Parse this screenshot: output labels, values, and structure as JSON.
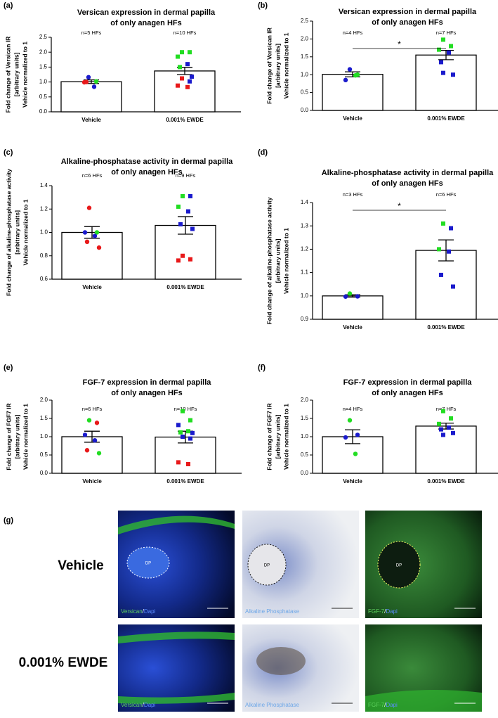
{
  "chart_data": [
    {
      "type": "bar",
      "letter": "(a)",
      "title": [
        "Versican expression in dermal papilla",
        "of only anagen HFs"
      ],
      "ylabel": [
        "Fold change of Versican IR",
        "[arbitrary units]",
        "Vehicle normalized to 1"
      ],
      "categories": [
        "Vehicle",
        "0.001% EWDE"
      ],
      "n_labels": [
        "n=5 HFs",
        "n=10 HFs"
      ],
      "values": [
        1.01,
        1.37
      ],
      "errors": [
        0.06,
        0.12
      ],
      "markers": [
        "circle",
        "square"
      ],
      "points": [
        [
          {
            "y": 1.16,
            "color": "#1a1acc"
          },
          {
            "y": 1.02,
            "color": "#22dd22"
          },
          {
            "y": 0.99,
            "color": "#e8191a"
          },
          {
            "y": 0.84,
            "color": "#1a1acc"
          },
          {
            "y": 1.0,
            "color": "#e8191a"
          }
        ],
        [
          {
            "y": 2.0,
            "color": "#22dd22"
          },
          {
            "y": 2.0,
            "color": "#22dd22"
          },
          {
            "y": 1.85,
            "color": "#22dd22"
          },
          {
            "y": 1.6,
            "color": "#1a1acc"
          },
          {
            "y": 1.5,
            "color": "#22dd22"
          },
          {
            "y": 1.18,
            "color": "#1a1acc"
          },
          {
            "y": 1.12,
            "color": "#e8191a"
          },
          {
            "y": 1.02,
            "color": "#1a1acc"
          },
          {
            "y": 0.88,
            "color": "#e8191a"
          },
          {
            "y": 0.83,
            "color": "#e8191a"
          }
        ]
      ],
      "ylim": [
        0,
        2.5
      ],
      "yticks": [
        {
          "value": 0,
          "label": "0.0"
        },
        0.5,
        {
          "value": 1,
          "label": "1.0"
        },
        1.5,
        {
          "value": 2,
          "label": "2.0"
        },
        2.5
      ]
    },
    {
      "type": "bar",
      "letter": "(b)",
      "title": [
        "Versican expression in dermal papilla",
        "of only anagen HFs"
      ],
      "ylabel": [
        "Fold change of Versican IR",
        "[arbitrary units]",
        "Vehicle normalized to 1"
      ],
      "categories": [
        "Vehicle",
        "0.001% EWDE"
      ],
      "n_labels": [
        "n=4 HFs",
        "n=7 HFs"
      ],
      "values": [
        1.01,
        1.55
      ],
      "errors": [
        0.07,
        0.13
      ],
      "markers": [
        "circle",
        "square"
      ],
      "points": [
        [
          {
            "y": 1.15,
            "color": "#1a1acc"
          },
          {
            "y": 1.0,
            "color": "#22dd22"
          },
          {
            "y": 0.85,
            "color": "#1a1acc"
          },
          {
            "y": 0.98,
            "color": "#22dd22"
          }
        ],
        [
          {
            "y": 1.98,
            "color": "#22dd22"
          },
          {
            "y": 1.8,
            "color": "#22dd22"
          },
          {
            "y": 1.7,
            "color": "#22dd22"
          },
          {
            "y": 1.62,
            "color": "#1a1acc"
          },
          {
            "y": 1.35,
            "color": "#1a1acc"
          },
          {
            "y": 1.0,
            "color": "#1a1acc"
          },
          {
            "y": 1.05,
            "color": "#1a1acc"
          }
        ]
      ],
      "ylim": [
        0,
        2.5
      ],
      "yticks": [
        {
          "value": 0,
          "label": "0.0"
        },
        0.5,
        {
          "value": 1,
          "label": "1.0"
        },
        1.5,
        {
          "value": 2,
          "label": "2.0"
        },
        2.5
      ],
      "significance": "*"
    },
    {
      "type": "bar",
      "letter": "(c)",
      "title": [
        "Alkaline-phosphatase activity in dermal papilla",
        "of only anagen HFs"
      ],
      "ylabel": [
        "Fold change of alkaline-phosphatase activity",
        "[arbitrary units]",
        "Vehicle normalized to 1"
      ],
      "categories": [
        "Vehicle",
        "0.001% EWDE"
      ],
      "n_labels": [
        "n=6 HFs",
        "n=9 HFs"
      ],
      "values": [
        1.0,
        1.06
      ],
      "errors": [
        0.05,
        0.075
      ],
      "markers": [
        "circle",
        "square"
      ],
      "points": [
        [
          {
            "y": 1.21,
            "color": "#e8191a"
          },
          {
            "y": 1.0,
            "color": "#22dd22"
          },
          {
            "y": 1.0,
            "color": "#1a1acc"
          },
          {
            "y": 0.97,
            "color": "#1a1acc"
          },
          {
            "y": 0.92,
            "color": "#e8191a"
          },
          {
            "y": 0.87,
            "color": "#e8191a"
          }
        ],
        [
          {
            "y": 1.31,
            "color": "#22dd22"
          },
          {
            "y": 1.31,
            "color": "#1a1acc"
          },
          {
            "y": 1.22,
            "color": "#22dd22"
          },
          {
            "y": 1.18,
            "color": "#1a1acc"
          },
          {
            "y": 1.07,
            "color": "#1a1acc"
          },
          {
            "y": 1.03,
            "color": "#1a1acc"
          },
          {
            "y": 0.8,
            "color": "#e8191a"
          },
          {
            "y": 0.77,
            "color": "#e8191a"
          },
          {
            "y": 0.76,
            "color": "#e8191a"
          }
        ]
      ],
      "ylim": [
        0.6,
        1.4
      ],
      "yticks": [
        0.6,
        0.8,
        {
          "value": 1,
          "label": "1.0"
        },
        1.2,
        1.4
      ]
    },
    {
      "type": "bar",
      "letter": "(d)",
      "title": [
        "Alkaline-phosphatase activity in dermal papilla",
        "of only anagen HFs"
      ],
      "ylabel": [
        "Fold change of alkaline-phosphatase activity",
        "[arbitrary units]",
        "Vehicle normalized to 1"
      ],
      "categories": [
        "Vehicle",
        "0.001% EWDE"
      ],
      "n_labels": [
        "n=3 HFs",
        "n=6 HFs"
      ],
      "values": [
        1.0,
        1.195
      ],
      "errors": [
        0.005,
        0.045
      ],
      "markers": [
        "circle",
        "square"
      ],
      "points": [
        [
          {
            "y": 1.01,
            "color": "#22dd22"
          },
          {
            "y": 0.998,
            "color": "#1a1acc"
          },
          {
            "y": 0.997,
            "color": "#1a1acc"
          }
        ],
        [
          {
            "y": 1.31,
            "color": "#22dd22"
          },
          {
            "y": 1.29,
            "color": "#1a1acc"
          },
          {
            "y": 1.2,
            "color": "#22dd22"
          },
          {
            "y": 1.19,
            "color": "#1a1acc"
          },
          {
            "y": 1.09,
            "color": "#1a1acc"
          },
          {
            "y": 1.04,
            "color": "#1a1acc"
          }
        ]
      ],
      "ylim": [
        0.9,
        1.4
      ],
      "yticks": [
        0.9,
        {
          "value": 1,
          "label": "1.0"
        },
        1.1,
        1.2,
        1.3,
        1.4
      ],
      "significance": "*"
    },
    {
      "type": "bar",
      "letter": "(e)",
      "title": [
        "FGF-7 expression in dermal papilla",
        "of only anagen HFs"
      ],
      "ylabel": [
        "Fold change of FGF7 IR",
        "[arbitrary units]",
        "Vehicle normalized to 1"
      ],
      "categories": [
        "Vehicle",
        "0.001% EWDE"
      ],
      "n_labels": [
        "n=6 HFs",
        "n=10 HFs"
      ],
      "values": [
        1.0,
        0.99
      ],
      "errors": [
        0.15,
        0.16
      ],
      "markers": [
        "circle",
        "square"
      ],
      "points": [
        [
          {
            "y": 1.45,
            "color": "#22dd22"
          },
          {
            "y": 1.38,
            "color": "#e8191a"
          },
          {
            "y": 1.05,
            "color": "#1a1acc"
          },
          {
            "y": 0.9,
            "color": "#1a1acc"
          },
          {
            "y": 0.63,
            "color": "#e8191a"
          },
          {
            "y": 0.55,
            "color": "#22dd22"
          }
        ],
        [
          {
            "y": 1.7,
            "color": "#22dd22"
          },
          {
            "y": 1.45,
            "color": "#22dd22"
          },
          {
            "y": 1.32,
            "color": "#1a1acc"
          },
          {
            "y": 1.15,
            "color": "#22dd22"
          },
          {
            "y": 1.12,
            "color": "#22dd22"
          },
          {
            "y": 1.1,
            "color": "#1a1acc"
          },
          {
            "y": 1.0,
            "color": "#1a1acc"
          },
          {
            "y": 0.95,
            "color": "#1a1acc"
          },
          {
            "y": 0.3,
            "color": "#e8191a"
          },
          {
            "y": 0.25,
            "color": "#e8191a"
          }
        ]
      ],
      "ylim": [
        0,
        2
      ],
      "yticks": [
        {
          "value": 0,
          "label": "0.0"
        },
        0.5,
        {
          "value": 1,
          "label": "1.0"
        },
        1.5,
        {
          "value": 2,
          "label": "2.0"
        }
      ]
    },
    {
      "type": "bar",
      "letter": "(f)",
      "title": [
        "FGF-7 expression in dermal papilla",
        "of only anagen HFs"
      ],
      "ylabel": [
        "Fold change of FGF7 IR",
        "[arbitrary units]",
        "Vehicle normalized to 1"
      ],
      "categories": [
        "Vehicle",
        "0.001% EWDE"
      ],
      "n_labels": [
        "n=4 HFs",
        "n=7 HFs"
      ],
      "values": [
        1.0,
        1.29
      ],
      "errors": [
        0.19,
        0.08
      ],
      "markers": [
        "circle",
        "square"
      ],
      "points": [
        [
          {
            "y": 1.45,
            "color": "#22dd22"
          },
          {
            "y": 1.05,
            "color": "#1a1acc"
          },
          {
            "y": 0.98,
            "color": "#1a1acc"
          },
          {
            "y": 0.53,
            "color": "#22dd22"
          }
        ],
        [
          {
            "y": 1.7,
            "color": "#22dd22"
          },
          {
            "y": 1.5,
            "color": "#22dd22"
          },
          {
            "y": 1.35,
            "color": "#22dd22"
          },
          {
            "y": 1.25,
            "color": "#1a1acc"
          },
          {
            "y": 1.2,
            "color": "#1a1acc"
          },
          {
            "y": 1.1,
            "color": "#1a1acc"
          },
          {
            "y": 1.05,
            "color": "#1a1acc"
          }
        ]
      ],
      "ylim": [
        0,
        2
      ],
      "yticks": [
        {
          "value": 0,
          "label": "0.0"
        },
        0.5,
        {
          "value": 1,
          "label": "1.0"
        },
        1.5,
        {
          "value": 2,
          "label": "2.0"
        }
      ]
    }
  ],
  "figure": {
    "letter": "(g)",
    "rows": [
      "Vehicle",
      "0.001% EWDE"
    ],
    "dp": "DP",
    "captions": [
      [
        {
          "text": "Versican",
          "color": "#5fd35f"
        },
        {
          "text": "/",
          "color": "#ffffff"
        },
        {
          "text": "Dapi",
          "color": "#5b8cff"
        }
      ],
      [
        {
          "text": "Alkaline Phosphatase",
          "color": "#6fa8e8"
        }
      ],
      [
        {
          "text": "FGF-7",
          "color": "#5fd35f"
        },
        {
          "text": "/",
          "color": "#ffffff"
        },
        {
          "text": "Dapi",
          "color": "#5b8cff"
        }
      ]
    ]
  }
}
